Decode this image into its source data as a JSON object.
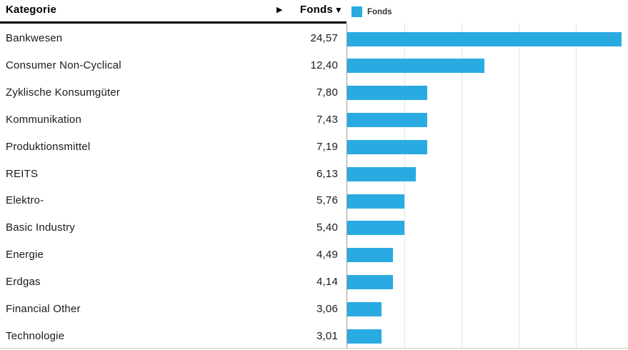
{
  "header": {
    "category_label": "Kategorie",
    "expand_arrow_icon": "▶",
    "value_label": "Fonds",
    "sort_desc_icon": "▼"
  },
  "legend": {
    "label": "Fonds",
    "swatch_color": "#29abe2"
  },
  "rows": [
    {
      "label": "Bankwesen",
      "value": "24,57"
    },
    {
      "label": "Consumer Non-Cyclical",
      "value": "12,40"
    },
    {
      "label": "Zyklische Konsumgüter",
      "value": "7,80"
    },
    {
      "label": "Kommunikation",
      "value": "7,43"
    },
    {
      "label": "Produktionsmittel",
      "value": "7,19"
    },
    {
      "label": "REITS",
      "value": "6,13"
    },
    {
      "label": "Elektro-",
      "value": "5,76"
    },
    {
      "label": "Basic Industry",
      "value": "5,40"
    },
    {
      "label": "Energie",
      "value": "4,49"
    },
    {
      "label": "Erdgas",
      "value": "4,14"
    },
    {
      "label": "Financial Other",
      "value": "3,06"
    },
    {
      "label": "Technologie",
      "value": "3,01"
    }
  ],
  "chart_data": {
    "type": "bar",
    "orientation": "horizontal",
    "series_name": "Fonds",
    "categories": [
      "Bankwesen",
      "Consumer Non-Cyclical",
      "Zyklische Konsumgüter",
      "Kommunikation",
      "Produktionsmittel",
      "REITS",
      "Elektro-",
      "Basic Industry",
      "Energie",
      "Erdgas",
      "Financial Other",
      "Technologie"
    ],
    "values": [
      24.57,
      12.4,
      7.8,
      7.43,
      7.19,
      6.13,
      5.76,
      5.4,
      4.49,
      4.14,
      3.06,
      3.01
    ],
    "value_format": "decimal-comma",
    "xlim": [
      0,
      24.6
    ],
    "gridline_interval": 5,
    "grid": "vertical-only",
    "bar_color": "#29abe2",
    "legend_position": "top",
    "sorted": "descending"
  }
}
